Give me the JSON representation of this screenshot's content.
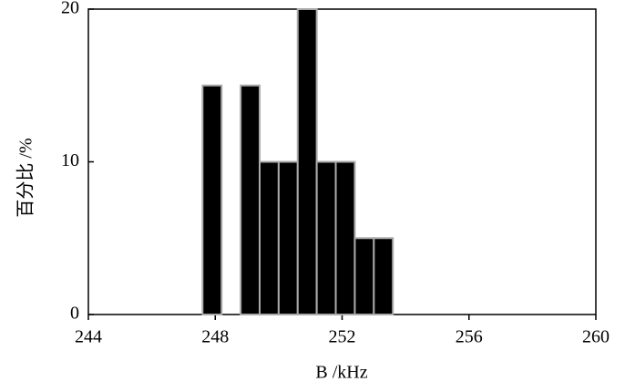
{
  "chart_data": {
    "type": "histogram",
    "x_label": "B /kHz",
    "y_label": "百分比 /%",
    "bins": [
      247.6,
      248.2,
      248.8,
      249.4,
      250.0,
      250.6,
      251.2,
      251.8,
      252.4,
      253.0,
      253.6
    ],
    "counts": [
      15,
      0,
      15,
      10,
      10,
      20,
      10,
      10,
      5,
      5
    ],
    "color": "#000000",
    "edgecolor": "#aaaaaa",
    "xlim": [
      244,
      260
    ],
    "xticks": [
      244,
      248,
      252,
      256,
      260
    ],
    "ylim": [
      0,
      20
    ],
    "yticks": [
      0,
      10,
      20
    ],
    "grid": false
  }
}
